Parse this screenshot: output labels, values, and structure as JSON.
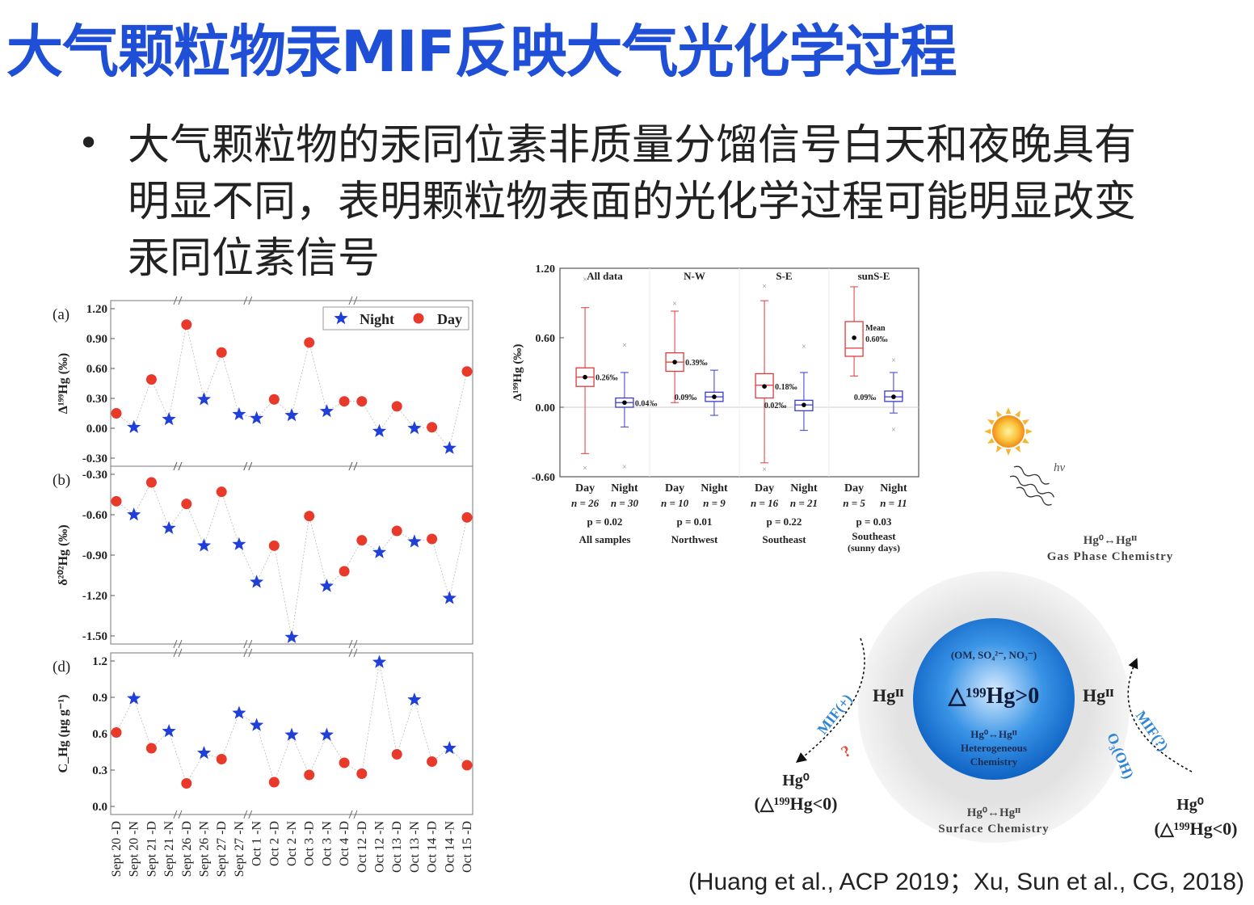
{
  "slide": {
    "title": "大气颗粒物汞MIF反映大气光化学过程",
    "bullet": "•",
    "bullet_lines": [
      "大气颗粒物的汞同位素非质量分馏信号白天和夜晚具有",
      "明显不同，表明颗粒物表面的光化学过程可能明显改变",
      "汞同位素信号"
    ],
    "citation": "(Huang et al., ACP 2019；Xu, Sun et al., CG, 2018)"
  },
  "chart_data": [
    {
      "type": "scatter",
      "panel": "(a)",
      "ylabel": "Δ¹⁹⁹Hg (‰)",
      "ylim": [
        -0.3,
        1.2
      ],
      "yticks": [
        "1.20",
        "0.90",
        "0.60",
        "0.30",
        "0.00",
        "-0.30"
      ],
      "legend": [
        "Night",
        "Day"
      ],
      "x": [
        "Sept 20 -D",
        "Sept 20 -N",
        "Sept 21 -D",
        "Sept 21 -N",
        "Sept 26 -D",
        "Sept 26 -N",
        "Sept 27 -D",
        "Sept 27 -N",
        "Oct 1 -N",
        "Oct 2 -D",
        "Oct 2 -N",
        "Oct 3 -D",
        "Oct 3 -N",
        "Oct 4 -D",
        "Oct 12 -D",
        "Oct 12 -N",
        "Oct 13 -D",
        "Oct 13 -N",
        "Oct 14 -D",
        "Oct 14 -N",
        "Oct 15 -D"
      ],
      "values": [
        0.15,
        0.01,
        0.49,
        0.09,
        1.04,
        0.29,
        0.76,
        0.14,
        0.1,
        0.29,
        0.13,
        0.86,
        0.17,
        0.27,
        0.27,
        -0.03,
        0.22,
        0.0,
        0.01,
        -0.2,
        0.57
      ]
    },
    {
      "type": "scatter",
      "panel": "(b)",
      "ylabel": "δ²⁰²Hg (‰)",
      "ylim": [
        -1.5,
        -0.3
      ],
      "yticks": [
        "-0.30",
        "-0.60",
        "-0.90",
        "-1.20",
        "-1.50"
      ],
      "x": [
        "Sept 20 -D",
        "Sept 20 -N",
        "Sept 21 -D",
        "Sept 21 -N",
        "Sept 26 -D",
        "Sept 26 -N",
        "Sept 27 -D",
        "Sept 27 -N",
        "Oct 1 -N",
        "Oct 2 -D",
        "Oct 2 -N",
        "Oct 3 -D",
        "Oct 3 -N",
        "Oct 4 -D",
        "Oct 12 -D",
        "Oct 12 -N",
        "Oct 13 -D",
        "Oct 13 -N",
        "Oct 14 -D",
        "Oct 14 -N",
        "Oct 15 -D"
      ],
      "values": [
        -0.5,
        -0.6,
        -0.36,
        -0.7,
        -0.52,
        -0.83,
        -0.43,
        -0.82,
        -1.1,
        -0.83,
        -1.51,
        -0.61,
        -1.13,
        -1.02,
        -0.79,
        -0.88,
        -0.72,
        -0.8,
        -0.78,
        -1.22,
        -0.62
      ]
    },
    {
      "type": "scatter",
      "panel": "(d)",
      "ylabel": "C_Hg (μg g⁻¹)",
      "ylim": [
        0.0,
        1.2
      ],
      "yticks": [
        "1.2",
        "0.9",
        "0.6",
        "0.3",
        "0.0"
      ],
      "x": [
        "Sept 20 -D",
        "Sept 20 -N",
        "Sept 21 -D",
        "Sept 21 -N",
        "Sept 26 -D",
        "Sept 26 -N",
        "Sept 27 -D",
        "Sept 27 -N",
        "Oct 1 -N",
        "Oct 2 -D",
        "Oct 2 -N",
        "Oct 3 -D",
        "Oct 3 -N",
        "Oct 4 -D",
        "Oct 12 -D",
        "Oct 12 -N",
        "Oct 13 -D",
        "Oct 13 -N",
        "Oct 14 -D",
        "Oct 14 -N",
        "Oct 15 -D"
      ],
      "values": [
        0.61,
        0.89,
        0.48,
        0.62,
        0.19,
        0.44,
        0.39,
        0.77,
        0.67,
        0.2,
        0.59,
        0.26,
        0.59,
        0.36,
        0.27,
        1.19,
        0.43,
        0.88,
        0.37,
        0.48,
        0.34
      ]
    },
    {
      "type": "box",
      "ylabel": "Δ¹⁹⁹Hg (‰)",
      "ylim": [
        -0.6,
        1.2
      ],
      "yticks": [
        "1.20",
        "0.60",
        "0.00",
        "-0.60"
      ],
      "panels": [
        "All data",
        "N-W",
        "S-E",
        "sunS-E"
      ],
      "groups": [
        {
          "name": "All samples",
          "p": "p = 0.02",
          "day": {
            "n": "n = 26",
            "mean": 0.26,
            "label": "0.26‰",
            "q1": 0.18,
            "median": 0.26,
            "q3": 0.34,
            "whislo": -0.4,
            "whishi": 0.86,
            "outliers": [
              1.11,
              -0.52
            ]
          },
          "night": {
            "n": "n = 30",
            "mean": 0.04,
            "label": "0.04‰",
            "q1": 0.0,
            "median": 0.04,
            "q3": 0.08,
            "whislo": -0.17,
            "whishi": 0.3,
            "outliers": [
              0.54,
              -0.51
            ]
          }
        },
        {
          "name": "Northwest",
          "p": "p = 0.01",
          "day": {
            "n": "n = 10",
            "mean": 0.39,
            "label": "0.39‰",
            "q1": 0.31,
            "median": 0.39,
            "q3": 0.47,
            "whislo": 0.04,
            "whishi": 0.83,
            "outliers": [
              0.9
            ]
          },
          "night": {
            "n": "n = 9",
            "mean": 0.09,
            "label": "0.09‰",
            "q1": 0.05,
            "median": 0.09,
            "q3": 0.13,
            "whislo": -0.07,
            "whishi": 0.32,
            "outliers": []
          }
        },
        {
          "name": "Southeast",
          "p": "p = 0.22",
          "day": {
            "n": "n = 16",
            "mean": 0.18,
            "label": "0.18‰",
            "q1": 0.08,
            "median": 0.19,
            "q3": 0.29,
            "whislo": -0.48,
            "whishi": 0.92,
            "outliers": [
              1.05,
              -0.53
            ]
          },
          "night": {
            "n": "n = 21",
            "mean": 0.02,
            "label": "0.02‰",
            "q1": -0.03,
            "median": 0.02,
            "q3": 0.06,
            "whislo": -0.2,
            "whishi": 0.3,
            "outliers": [
              0.53
            ]
          }
        },
        {
          "name": "Southeast (sunny days)",
          "p": "p = 0.03",
          "day": {
            "n": "n = 5",
            "mean": 0.6,
            "label": "Mean 0.60‰",
            "q1": 0.44,
            "median": 0.51,
            "q3": 0.74,
            "whislo": 0.27,
            "whishi": 1.04,
            "outliers": []
          },
          "night": {
            "n": "n = 11",
            "mean": 0.09,
            "label": "0.09‰",
            "q1": 0.05,
            "median": 0.09,
            "q3": 0.14,
            "whislo": -0.05,
            "whishi": 0.3,
            "outliers": [
              0.41,
              -0.19
            ]
          }
        }
      ],
      "xlabels": [
        "Day",
        "Night"
      ]
    }
  ],
  "diagram": {
    "hv": "hv",
    "gas": "Hg⁰↔Hgᴵᴵ",
    "gas_label": "Gas Phase Chemistry",
    "core_top": "(OM, SO₄²⁻, NO₃⁻)",
    "core_main": "△¹⁹⁹Hg>0",
    "core_eq": "Hg⁰↔Hgᴵᴵ",
    "core_label1": "Heterogeneous",
    "core_label2": "Chemistry",
    "surface_eq": "Hg⁰↔Hgᴵᴵ",
    "surface_label": "Surface Chemistry",
    "left_hg": "Hgᴵᴵ",
    "right_hg": "Hgᴵᴵ",
    "left_out": "Hg⁰",
    "left_out2": "(△¹⁹⁹Hg<0)",
    "right_out": "Hg⁰",
    "right_out2": "(△¹⁹⁹Hg<0)",
    "mif_left": "MIF(+)",
    "mif_left_q": "?",
    "mif_right": "MIF(?)",
    "oxidant": "O₃(OH)",
    "colors": {
      "blue": "#1a6fd0",
      "orange": "#f5a623",
      "red": "#e84c3d"
    }
  }
}
